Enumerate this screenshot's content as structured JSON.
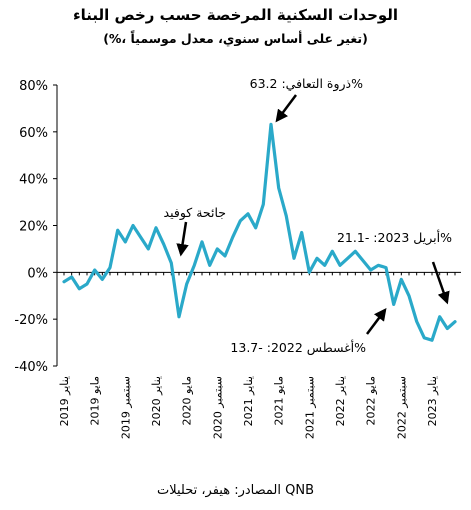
{
  "chart_data": {
    "type": "line",
    "title": "الوحدات السكنية المرخصة حسب رخص البناء",
    "subtitle": "(%، تغير على أساس سنوي، معدل موسمياً)",
    "xlabel": "",
    "ylabel": "",
    "ylim": [
      -40,
      80
    ],
    "yticks": [
      80,
      60,
      40,
      20,
      0,
      -20,
      -40
    ],
    "ytick_labels": [
      "80%",
      "60%",
      "40%",
      "20%",
      "0%",
      "-20%",
      "-40%"
    ],
    "grid": false,
    "x_tick_labels": [
      "يناير 2019",
      "مايو 2019",
      "سبتمبر 2019",
      "يناير 2020",
      "مايو 2020",
      "سبتمبر 2020",
      "يناير 2021",
      "مايو 2021",
      "سبتمبر 2021",
      "يناير 2022",
      "مايو 2022",
      "سبتمبر 2022",
      "يناير 2023"
    ],
    "series": [
      {
        "color": "#2aa9c9",
        "values": [
          -4,
          -2,
          -7,
          -5,
          1,
          -3,
          2,
          18,
          13,
          20,
          15,
          10,
          19,
          12,
          4,
          -19,
          -5,
          3,
          13,
          3,
          10,
          7,
          15,
          22,
          25,
          19,
          29,
          63.2,
          36,
          24,
          6,
          17,
          0,
          6,
          3,
          9,
          3,
          6,
          9,
          5,
          1,
          3,
          2,
          -13.7,
          -3,
          -10,
          -21,
          -28,
          -29,
          -19,
          -24,
          -21.1
        ]
      }
    ],
    "annotations": [
      {
        "text": "ذروة التعافي: 63.2%",
        "index": 27
      },
      {
        "text": "جائحة كوفيد",
        "index": 15
      },
      {
        "text": "أغسطس 2022: -13.7%",
        "index": 43
      },
      {
        "text": "أبريل 2023: -21.1%",
        "index": 51
      }
    ]
  },
  "source": "المصادر: هيفر، تحليلات QNB"
}
